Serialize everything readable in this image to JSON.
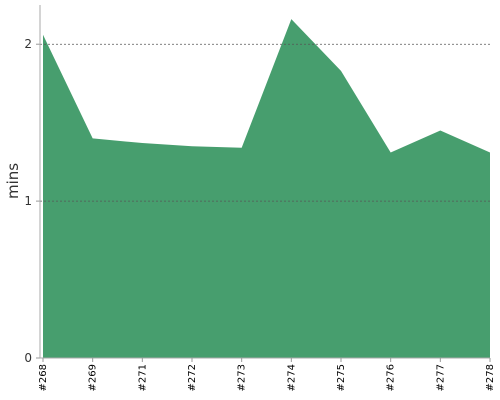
{
  "chart_data": {
    "type": "area",
    "y_label": "mins",
    "categories": [
      "#268",
      "#269",
      "#271",
      "#272",
      "#273",
      "#274",
      "#275",
      "#276",
      "#277",
      "#278"
    ],
    "values": [
      2.06,
      1.4,
      1.37,
      1.35,
      1.34,
      2.16,
      1.83,
      1.31,
      1.45,
      1.31
    ],
    "color": "#479e6e",
    "ylim": [
      0,
      2.25
    ],
    "yticks": [
      0,
      1,
      2
    ],
    "grid": true
  }
}
